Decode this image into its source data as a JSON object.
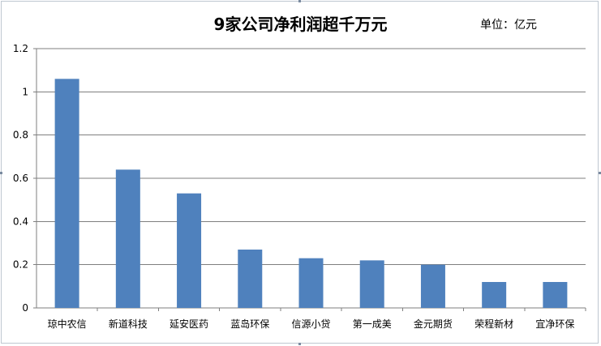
{
  "chart_data": {
    "type": "bar",
    "title": "9家公司净利润超千万元",
    "unit_note": "单位：亿元",
    "categories": [
      "琼中农信",
      "新道科技",
      "延安医药",
      "蓝岛环保",
      "信源小贷",
      "第一成美",
      "金元期货",
      "荣程新材",
      "宜净环保"
    ],
    "values": [
      1.06,
      0.64,
      0.53,
      0.27,
      0.23,
      0.22,
      0.2,
      0.12,
      0.12
    ],
    "ylim": [
      0,
      1.2
    ],
    "yticks": [
      "0",
      "0.2",
      "0.4",
      "0.6",
      "0.8",
      "1",
      "1.2"
    ],
    "xlabel": "",
    "ylabel": "",
    "grid": true,
    "legend": "none",
    "colors": {
      "bar": "#4f81bd",
      "grid": "#7f7f7f",
      "axis": "#7f7f7f"
    }
  }
}
